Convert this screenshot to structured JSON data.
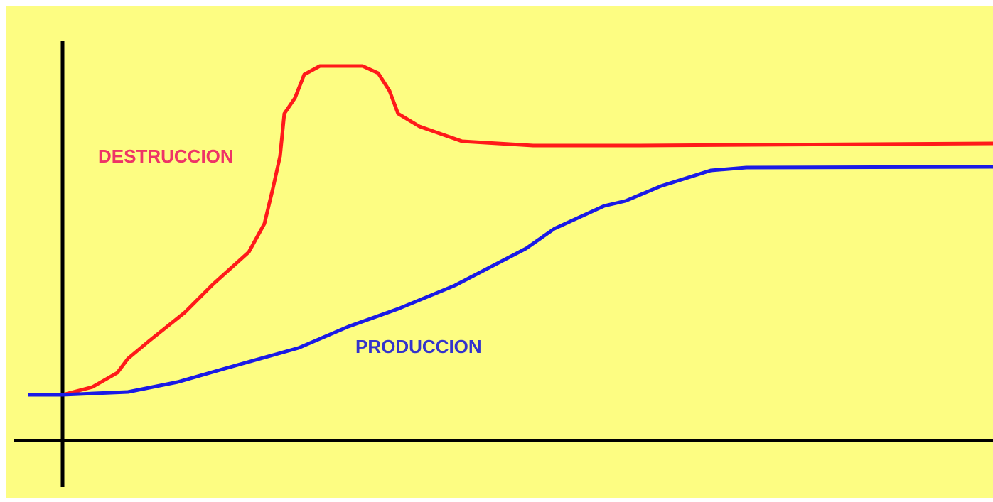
{
  "labels": {
    "destruction": "DESTRUCCION",
    "production": "PRODUCCION"
  }
}
